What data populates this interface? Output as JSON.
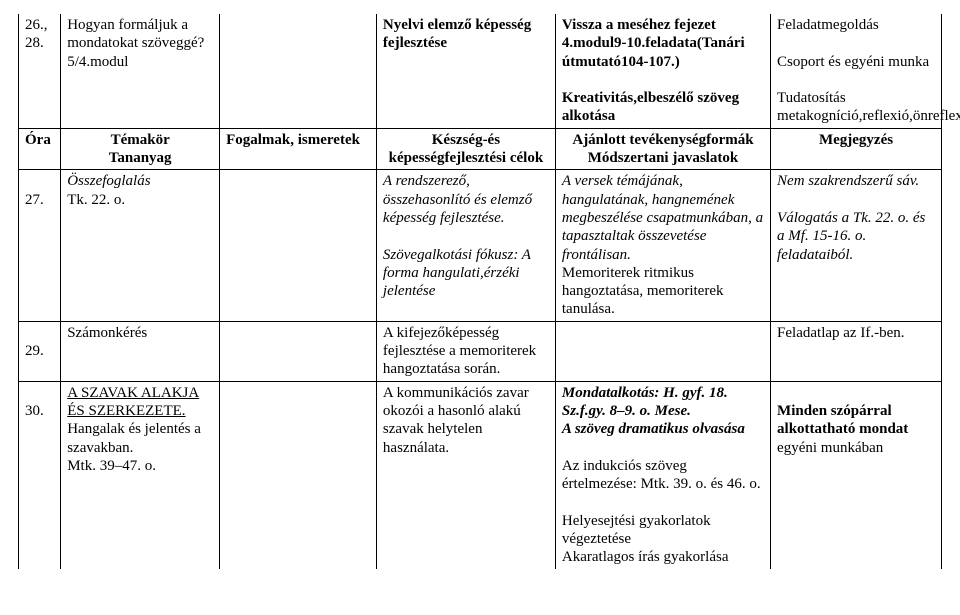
{
  "rows": {
    "r1": {
      "num": "26.,\n28.",
      "col2a": "Hogyan formáljuk a mondatokat szöveggé?",
      "col2b": "5/4.modul",
      "col4": "Nyelvi elemző képesség fejlesztése",
      "col5a": "Vissza a meséhez fejezet 4.modul9-10.feladata(Tanári útmutató104-107.)",
      "col5b": "Kreativitás,elbeszélő szöveg alkotása",
      "col6a": "Feladatmegoldás",
      "col6b": "Csoport és egyéni munka",
      "col6c": "Tudatosítás metakogníció,reflexió,önreflexió"
    },
    "header": {
      "c1": "Óra",
      "c2a": "Témakör",
      "c2b": "Tananyag",
      "c3": "Fogalmak, ismeretek",
      "c4": "Készség-és képességfejlesztési célok",
      "c5a": "Ajánlott tevékenységformák",
      "c5b": "Módszertani javaslatok",
      "c6": "Megjegyzés"
    },
    "r27": {
      "num": "27.",
      "col2a": "Összefoglalás",
      "col2b": "Tk. 22. o.",
      "col4a": "A rendszerező, összehasonlító és elemző képesség fejlesztése.",
      "col4b": "Szövegalkotási fókusz: A forma hangulati,érzéki jelentése",
      "col5": "A versek témájának, hangulatának, hangnemének megbeszélése csapatmunkában, a tapasztaltak összevetése frontálisan.",
      "col5b": "Memoriterek ritmikus hangoztatása, memoriterek tanulása.",
      "col6a": "Nem szakrendszerű sáv.",
      "col6b": "Válogatás a Tk. 22. o. és a Mf. 15-16. o. feladataiból."
    },
    "r29": {
      "num": "29.",
      "col2": "Számonkérés",
      "col4": "A kifejezőképesség fejlesztése a memoriterek hangoztatása során.",
      "col6": "Feladatlap az If.-ben."
    },
    "r30": {
      "num": "30.",
      "col2a": "A SZAVAK ALAKJA ÉS SZERKEZETE.",
      "col2b": "Hangalak és jelentés a szavakban.",
      "col2c": "Mtk. 39–47. o.",
      "col4": "A kommunikációs zavar okozói a hasonló alakú szavak helytelen használata.",
      "col5a": "Mondatalkotás: H. gyf. 18. Sz.f.gy. 8–9. o. Mese.",
      "col5b": "A szöveg dramatikus olvasása",
      "col5c": "Az indukciós szöveg értelmezése: Mtk. 39. o. és 46. o.",
      "col5d": "Helyesejtési gyakorlatok végeztetése",
      "col5e": "Akaratlagos írás gyakorlása",
      "col6a": "Minden szópárral alkottatható mondat egyéni munkában"
    }
  }
}
